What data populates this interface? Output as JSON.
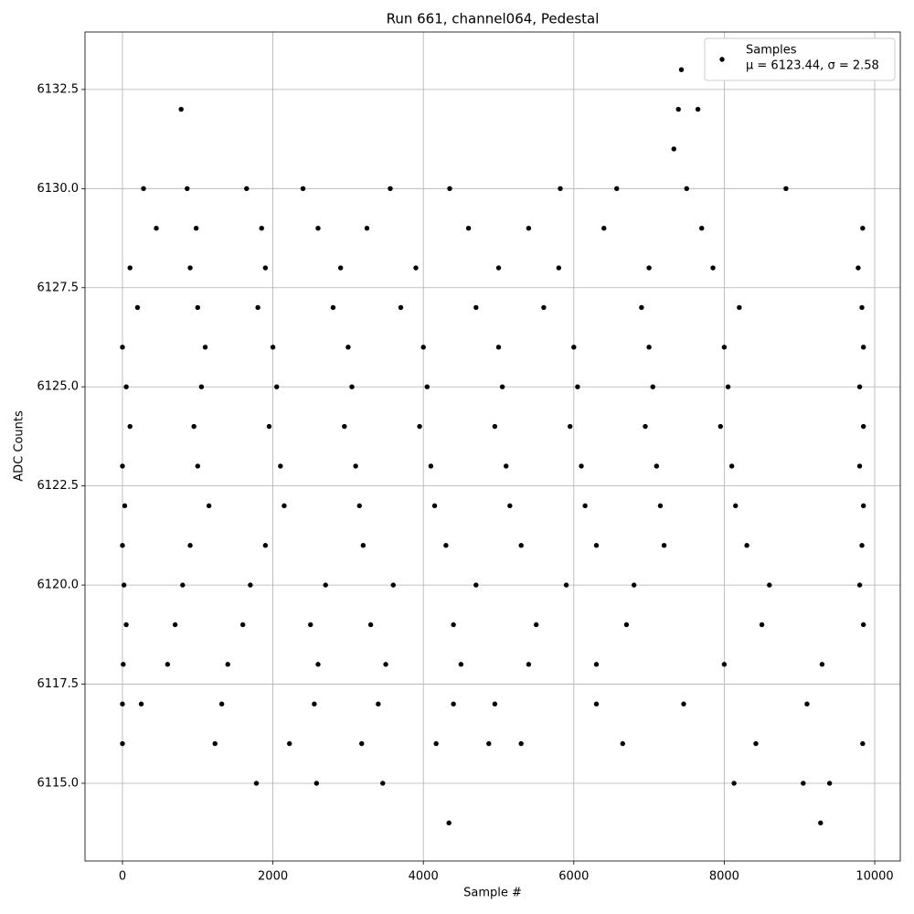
{
  "chart_data": {
    "type": "scatter",
    "title": "Run 661, channel064, Pedestal",
    "x_label": "Sample #",
    "y_label": "ADC Counts",
    "xlim": [
      -498,
      10340
    ],
    "ylim": [
      6113.04,
      6133.95
    ],
    "xticks": [
      0,
      2000,
      4000,
      6000,
      8000,
      10000
    ],
    "yticks": [
      {
        "value": 6115,
        "label": "6115.0"
      },
      6117.5,
      {
        "value": 6120,
        "label": "6120.0"
      },
      6122.5,
      {
        "value": 6125,
        "label": "6125.0"
      },
      6127.5,
      {
        "value": 6130,
        "label": "6130.0"
      },
      6132.5
    ],
    "grid": true,
    "legend": "upper right",
    "legend_note": "μ = 6123.44, σ = 2.58",
    "x": [
      780,
      7390,
      7650,
      7430,
      7330,
      4340,
      9280,
      1780,
      2580,
      3460,
      8130,
      9050,
      9400,
      280,
      860,
      1650,
      2400,
      3560,
      4350,
      5820,
      6570,
      7500,
      8820,
      450,
      980,
      1850,
      2600,
      3250,
      4600,
      5400,
      6400,
      7700,
      9840,
      100,
      900,
      1900,
      2900,
      3900,
      5000,
      5800,
      7000,
      7850,
      9780,
      200,
      1000,
      1800,
      2800,
      3700,
      4700,
      5600,
      6900,
      8200,
      9830,
      0,
      1100,
      2000,
      3000,
      4000,
      5000,
      6000,
      7000,
      8000,
      9850,
      50,
      1050,
      2050,
      3050,
      4050,
      5050,
      6050,
      7050,
      8050,
      9800,
      100,
      950,
      1950,
      2950,
      3950,
      4950,
      5950,
      6950,
      7950,
      9850,
      0,
      1000,
      2100,
      3100,
      4100,
      5100,
      6100,
      7100,
      8100,
      9800,
      30,
      1150,
      2150,
      3150,
      4150,
      5150,
      6150,
      7150,
      8150,
      9850,
      0,
      900,
      1900,
      3200,
      4300,
      5300,
      6300,
      7200,
      8300,
      9830,
      20,
      800,
      1700,
      2700,
      3600,
      4700,
      5900,
      6800,
      8600,
      9800,
      50,
      700,
      1600,
      2500,
      3300,
      4400,
      5500,
      6700,
      8500,
      9850,
      10,
      600,
      1400,
      2600,
      3500,
      4500,
      5400,
      6300,
      8000,
      9300,
      0,
      250,
      1320,
      2550,
      3400,
      4400,
      4950,
      6300,
      7460,
      9100,
      0,
      1230,
      2220,
      3180,
      4170,
      4870,
      5300,
      6650,
      8420,
      9840
    ],
    "series": [
      {
        "name": "Samples",
        "color": "#000000",
        "values": [
          6132,
          6132,
          6132,
          6133,
          6131,
          6114,
          6114,
          6115,
          6115,
          6115,
          6115,
          6115,
          6115,
          6130,
          6130,
          6130,
          6130,
          6130,
          6130,
          6130,
          6130,
          6130,
          6130,
          6129,
          6129,
          6129,
          6129,
          6129,
          6129,
          6129,
          6129,
          6129,
          6129,
          6128,
          6128,
          6128,
          6128,
          6128,
          6128,
          6128,
          6128,
          6128,
          6128,
          6127,
          6127,
          6127,
          6127,
          6127,
          6127,
          6127,
          6127,
          6127,
          6127,
          6126,
          6126,
          6126,
          6126,
          6126,
          6126,
          6126,
          6126,
          6126,
          6126,
          6125,
          6125,
          6125,
          6125,
          6125,
          6125,
          6125,
          6125,
          6125,
          6125,
          6124,
          6124,
          6124,
          6124,
          6124,
          6124,
          6124,
          6124,
          6124,
          6124,
          6123,
          6123,
          6123,
          6123,
          6123,
          6123,
          6123,
          6123,
          6123,
          6123,
          6122,
          6122,
          6122,
          6122,
          6122,
          6122,
          6122,
          6122,
          6122,
          6122,
          6121,
          6121,
          6121,
          6121,
          6121,
          6121,
          6121,
          6121,
          6121,
          6121,
          6120,
          6120,
          6120,
          6120,
          6120,
          6120,
          6120,
          6120,
          6120,
          6120,
          6119,
          6119,
          6119,
          6119,
          6119,
          6119,
          6119,
          6119,
          6119,
          6119,
          6118,
          6118,
          6118,
          6118,
          6118,
          6118,
          6118,
          6118,
          6118,
          6118,
          6117,
          6117,
          6117,
          6117,
          6117,
          6117,
          6117,
          6117,
          6117,
          6117,
          6116,
          6116,
          6116,
          6116,
          6116,
          6116,
          6116,
          6116,
          6116,
          6116
        ]
      }
    ]
  }
}
